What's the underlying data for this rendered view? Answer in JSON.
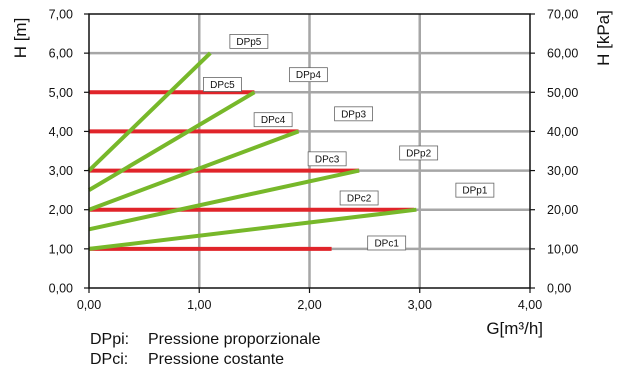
{
  "chart_data": {
    "type": "line",
    "title": "",
    "xlabel": "G[m³/h]",
    "ylabel_left": "H [m]",
    "ylabel_right": "H [kPa]",
    "xlim": [
      0,
      4
    ],
    "ylim": [
      0,
      7
    ],
    "x_ticks": [
      "0,00",
      "1,00",
      "2,00",
      "3,00",
      "4,00"
    ],
    "y_ticks_left": [
      "0,00",
      "1,00",
      "2,00",
      "3,00",
      "4,00",
      "5,00",
      "6,00",
      "7,00"
    ],
    "y_ticks_right": [
      "0,00",
      "10,00",
      "20,00",
      "30,00",
      "40,00",
      "50,00",
      "60,00",
      "70,00"
    ],
    "grid": true,
    "colors": {
      "proportional": "#77b82a",
      "constant": "#e0242a",
      "grid": "#a6a6a6"
    },
    "series": [
      {
        "name": "DPp1",
        "kind": "proportional",
        "points": [
          [
            0,
            1.0
          ],
          [
            2.97,
            2.0
          ]
        ],
        "label_at": [
          3.5,
          2.5
        ]
      },
      {
        "name": "DPp2",
        "kind": "proportional",
        "points": [
          [
            0,
            1.5
          ],
          [
            2.45,
            3.0
          ]
        ],
        "label_at": [
          2.99,
          3.45
        ]
      },
      {
        "name": "DPp3",
        "kind": "proportional",
        "points": [
          [
            0,
            2.0
          ],
          [
            1.9,
            4.0
          ]
        ],
        "label_at": [
          2.4,
          4.45
        ]
      },
      {
        "name": "DPp4",
        "kind": "proportional",
        "points": [
          [
            0,
            2.5
          ],
          [
            1.5,
            5.0
          ]
        ],
        "label_at": [
          1.99,
          5.45
        ]
      },
      {
        "name": "DPp5",
        "kind": "proportional",
        "points": [
          [
            0,
            3.0
          ],
          [
            1.1,
            6.0
          ]
        ],
        "label_at": [
          1.45,
          6.3
        ]
      },
      {
        "name": "DPc1",
        "kind": "constant",
        "points": [
          [
            0,
            1.0
          ],
          [
            2.2,
            1.0
          ]
        ],
        "label_at": [
          2.7,
          1.15
        ]
      },
      {
        "name": "DPc2",
        "kind": "constant",
        "points": [
          [
            0,
            2.0
          ],
          [
            2.95,
            2.0
          ]
        ],
        "label_at": [
          2.45,
          2.3
        ]
      },
      {
        "name": "DPc3",
        "kind": "constant",
        "points": [
          [
            0,
            3.0
          ],
          [
            2.45,
            3.0
          ]
        ],
        "label_at": [
          2.16,
          3.3
        ]
      },
      {
        "name": "DPc4",
        "kind": "constant",
        "points": [
          [
            0,
            4.0
          ],
          [
            1.9,
            4.0
          ]
        ],
        "label_at": [
          1.67,
          4.3
        ]
      },
      {
        "name": "DPc5",
        "kind": "constant",
        "points": [
          [
            0,
            5.0
          ],
          [
            1.5,
            5.0
          ]
        ],
        "label_at": [
          1.21,
          5.2
        ]
      }
    ]
  },
  "legend": [
    {
      "key": "DPpi:",
      "text": "Pressione proporzionale"
    },
    {
      "key": "DPci:",
      "text": "Pressione costante"
    }
  ]
}
